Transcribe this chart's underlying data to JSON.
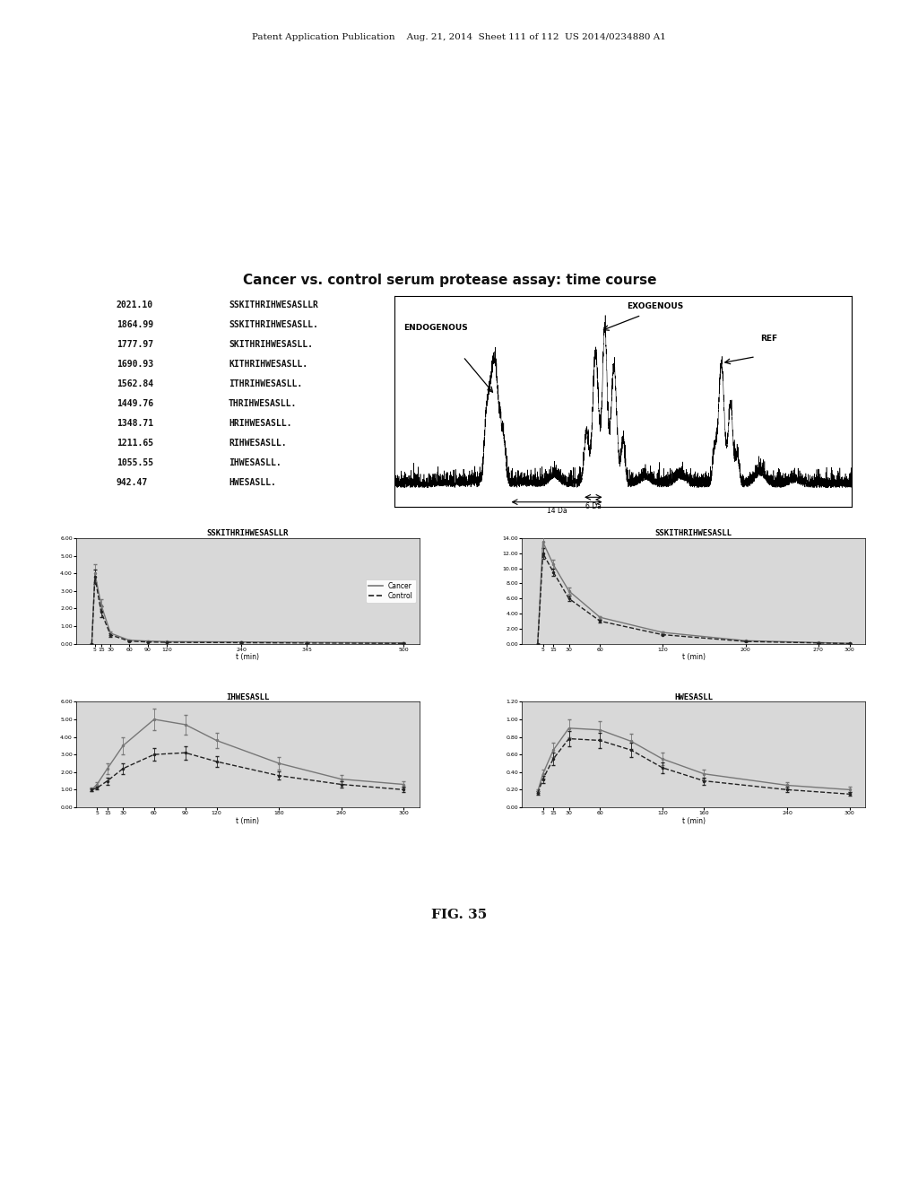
{
  "page_header": "Patent Application Publication    Aug. 21, 2014  Sheet 111 of 112  US 2014/0234880 A1",
  "main_title": "Cancer vs. control serum protease assay: time course",
  "fig_label": "FIG. 35",
  "background_color": "#ffffff",
  "table_data": [
    [
      "2021.10",
      "SSKITHRIHWESASLLR"
    ],
    [
      "1864.99",
      "SSKITHRIHWESASLL."
    ],
    [
      "1777.97",
      "SKITHRIHWESASLL."
    ],
    [
      "1690.93",
      "KITHRIHWESASLL."
    ],
    [
      "1562.84",
      "ITHRIHWESASLL."
    ],
    [
      "1449.76",
      "THRIHWESASLL."
    ],
    [
      "1348.71",
      "HRIHWESASLL."
    ],
    [
      "1211.65",
      "RIHWESASLL."
    ],
    [
      "1055.55",
      "IHWESASLL."
    ],
    [
      "942.47",
      "HWESASLL."
    ]
  ],
  "plots": {
    "top_left": {
      "title": "SSKITHRIHWESASLLR",
      "xlabel": "t (min)",
      "cancer_x": [
        0,
        5,
        15,
        30,
        60,
        90,
        120,
        240,
        345,
        500
      ],
      "cancer_y": [
        0.0,
        4.0,
        2.2,
        0.6,
        0.2,
        0.15,
        0.12,
        0.1,
        0.08,
        0.05
      ],
      "control_x": [
        0,
        5,
        15,
        30,
        60,
        90,
        120,
        240,
        345,
        500
      ],
      "control_y": [
        0.0,
        3.8,
        1.8,
        0.5,
        0.15,
        0.1,
        0.08,
        0.06,
        0.04,
        0.02
      ],
      "cancer_yerr": [
        0.0,
        0.5,
        0.35,
        0.12,
        0.05,
        0.04,
        0.03,
        0.02,
        0.02,
        0.01
      ],
      "control_yerr": [
        0.0,
        0.4,
        0.3,
        0.1,
        0.04,
        0.03,
        0.02,
        0.015,
        0.01,
        0.01
      ],
      "ylim": [
        0.0,
        6.0
      ],
      "ytick_labels": [
        "0.00",
        "1.00",
        "2.00",
        "3.00",
        "4.00",
        "5.00",
        "6.00"
      ],
      "ytick_vals": [
        0.0,
        1.0,
        2.0,
        3.0,
        4.0,
        5.0,
        6.0
      ],
      "xtick_vals": [
        5,
        15,
        30,
        60,
        90,
        120,
        240,
        345,
        500
      ],
      "xtick_labels": [
        "5",
        "15",
        "30",
        "60",
        "90",
        "120",
        "240",
        "345",
        "500"
      ],
      "legend": true
    },
    "top_right": {
      "title": "SSKITHRIHWESASLL",
      "xlabel": "t (min)",
      "cancer_x": [
        0,
        5,
        15,
        30,
        60,
        120,
        200,
        270,
        300
      ],
      "cancer_y": [
        0.0,
        13.5,
        10.5,
        7.0,
        3.5,
        1.5,
        0.4,
        0.15,
        0.05
      ],
      "control_x": [
        0,
        5,
        15,
        30,
        60,
        120,
        200,
        270,
        300
      ],
      "control_y": [
        0.0,
        12.0,
        9.5,
        6.0,
        3.0,
        1.2,
        0.3,
        0.1,
        0.02
      ],
      "cancer_yerr": [
        0.0,
        0.8,
        0.6,
        0.4,
        0.2,
        0.1,
        0.05,
        0.02,
        0.01
      ],
      "control_yerr": [
        0.0,
        0.7,
        0.5,
        0.35,
        0.18,
        0.09,
        0.04,
        0.015,
        0.01
      ],
      "ylim": [
        0.0,
        14.0
      ],
      "ytick_labels": [
        "0.00",
        "2.00",
        "4.00",
        "6.00",
        "8.00",
        "10.00",
        "12.00",
        "14.00"
      ],
      "ytick_vals": [
        0.0,
        2.0,
        4.0,
        6.0,
        8.0,
        10.0,
        12.0,
        14.0
      ],
      "xtick_vals": [
        5,
        15,
        30,
        60,
        120,
        200,
        270,
        300
      ],
      "xtick_labels": [
        "5",
        "15",
        "30",
        "60",
        "120",
        "200",
        "270",
        "300"
      ],
      "legend": false
    },
    "bottom_left": {
      "title": "IHWESASLL",
      "xlabel": "t (min)",
      "cancer_x": [
        0,
        5,
        15,
        30,
        60,
        90,
        120,
        180,
        240,
        300
      ],
      "cancer_y": [
        1.0,
        1.3,
        2.2,
        3.5,
        5.0,
        4.7,
        3.8,
        2.5,
        1.6,
        1.3
      ],
      "control_x": [
        0,
        5,
        15,
        30,
        60,
        90,
        120,
        180,
        240,
        300
      ],
      "control_y": [
        1.0,
        1.1,
        1.5,
        2.2,
        3.0,
        3.1,
        2.6,
        1.8,
        1.3,
        1.0
      ],
      "cancer_yerr": [
        0.1,
        0.15,
        0.3,
        0.5,
        0.6,
        0.55,
        0.45,
        0.35,
        0.25,
        0.2
      ],
      "control_yerr": [
        0.08,
        0.1,
        0.2,
        0.3,
        0.35,
        0.38,
        0.32,
        0.22,
        0.18,
        0.15
      ],
      "ylim": [
        0.0,
        6.0
      ],
      "ytick_labels": [
        "0.00",
        "1.00",
        "2.00",
        "3.00",
        "4.00",
        "5.00",
        "6.00"
      ],
      "ytick_vals": [
        0.0,
        1.0,
        2.0,
        3.0,
        4.0,
        5.0,
        6.0
      ],
      "xtick_vals": [
        5,
        15,
        30,
        60,
        90,
        120,
        180,
        240,
        300
      ],
      "xtick_labels": [
        "5",
        "15",
        "30",
        "60",
        "90",
        "120",
        "180",
        "240",
        "300"
      ],
      "legend": false
    },
    "bottom_right": {
      "title": "HWESASLL",
      "xlabel": "t (min)",
      "cancer_x": [
        0,
        5,
        15,
        30,
        60,
        90,
        120,
        160,
        240,
        300
      ],
      "cancer_y": [
        0.18,
        0.38,
        0.65,
        0.9,
        0.88,
        0.75,
        0.55,
        0.38,
        0.25,
        0.2
      ],
      "control_x": [
        0,
        5,
        15,
        30,
        60,
        90,
        120,
        160,
        240,
        300
      ],
      "control_y": [
        0.16,
        0.32,
        0.55,
        0.78,
        0.76,
        0.65,
        0.45,
        0.3,
        0.2,
        0.15
      ],
      "cancer_yerr": [
        0.02,
        0.05,
        0.08,
        0.1,
        0.1,
        0.09,
        0.07,
        0.05,
        0.04,
        0.03
      ],
      "control_yerr": [
        0.02,
        0.04,
        0.07,
        0.09,
        0.09,
        0.08,
        0.06,
        0.04,
        0.03,
        0.02
      ],
      "ylim": [
        0.0,
        1.2
      ],
      "ytick_labels": [
        "0.00",
        "0.20",
        "0.40",
        "0.60",
        "0.80",
        "1.00",
        "1.20"
      ],
      "ytick_vals": [
        0.0,
        0.2,
        0.4,
        0.6,
        0.8,
        1.0,
        1.2
      ],
      "xtick_vals": [
        5,
        15,
        30,
        60,
        120,
        160,
        240,
        300
      ],
      "xtick_labels": [
        "5",
        "15",
        "30",
        "60",
        "120",
        "160",
        "240",
        "300"
      ],
      "legend": false
    }
  },
  "cancer_color": "#777777",
  "control_color": "#222222",
  "plot_bg": "#d8d8d8"
}
